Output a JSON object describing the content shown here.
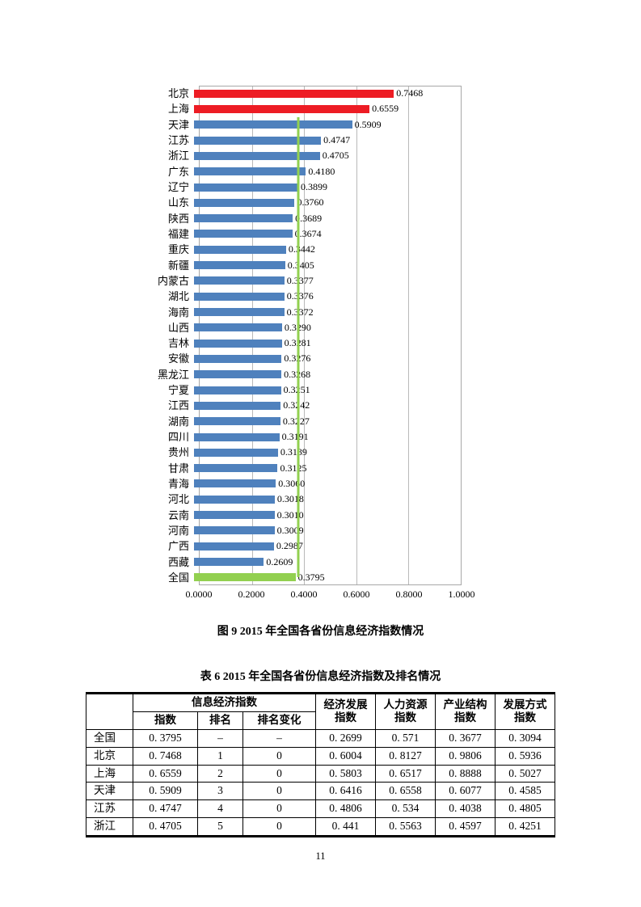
{
  "page": {
    "number": "11"
  },
  "figure": {
    "caption": "图 9  2015 年全国各省份信息经济指数情况"
  },
  "colors": {
    "red": "#ed1c24",
    "blue": "#4f81bd",
    "green": "#92d050",
    "grid": "#b9b9b9"
  },
  "chart_data": {
    "type": "bar",
    "orientation": "horizontal",
    "title": "",
    "xlabel": "",
    "ylabel": "",
    "xlim": [
      0,
      1
    ],
    "grid": true,
    "x_ticks": [
      "0.0000",
      "0.2000",
      "0.4000",
      "0.6000",
      "0.8000",
      "1.0000"
    ],
    "reference_line": {
      "value": 0.3795,
      "color": "green"
    },
    "items": [
      {
        "label": "北京",
        "value": 0.7468,
        "display": "0.7468",
        "color": "red"
      },
      {
        "label": "上海",
        "value": 0.6559,
        "display": "0.6559",
        "color": "red"
      },
      {
        "label": "天津",
        "value": 0.5909,
        "display": "0.5909",
        "color": "blue"
      },
      {
        "label": "江苏",
        "value": 0.4747,
        "display": "0.4747",
        "color": "blue"
      },
      {
        "label": "浙江",
        "value": 0.4705,
        "display": "0.4705",
        "color": "blue"
      },
      {
        "label": "广东",
        "value": 0.418,
        "display": "0.4180",
        "color": "blue"
      },
      {
        "label": "辽宁",
        "value": 0.3899,
        "display": "0.3899",
        "color": "blue"
      },
      {
        "label": "山东",
        "value": 0.376,
        "display": "0.3760",
        "color": "blue"
      },
      {
        "label": "陕西",
        "value": 0.3689,
        "display": "0.3689",
        "color": "blue"
      },
      {
        "label": "福建",
        "value": 0.3674,
        "display": "0.3674",
        "color": "blue"
      },
      {
        "label": "重庆",
        "value": 0.3442,
        "display": "0.3442",
        "color": "blue"
      },
      {
        "label": "新疆",
        "value": 0.3405,
        "display": "0.3405",
        "color": "blue"
      },
      {
        "label": "内蒙古",
        "value": 0.3377,
        "display": "0.3377",
        "color": "blue"
      },
      {
        "label": "湖北",
        "value": 0.3376,
        "display": "0.3376",
        "color": "blue"
      },
      {
        "label": "海南",
        "value": 0.3372,
        "display": "0.3372",
        "color": "blue"
      },
      {
        "label": "山西",
        "value": 0.329,
        "display": "0.3290",
        "color": "blue"
      },
      {
        "label": "吉林",
        "value": 0.3281,
        "display": "0.3281",
        "color": "blue"
      },
      {
        "label": "安徽",
        "value": 0.3276,
        "display": "0.3276",
        "color": "blue"
      },
      {
        "label": "黑龙江",
        "value": 0.3268,
        "display": "0.3268",
        "color": "blue"
      },
      {
        "label": "宁夏",
        "value": 0.3251,
        "display": "0.3251",
        "color": "blue"
      },
      {
        "label": "江西",
        "value": 0.3242,
        "display": "0.3242",
        "color": "blue"
      },
      {
        "label": "湖南",
        "value": 0.3227,
        "display": "0.3227",
        "color": "blue"
      },
      {
        "label": "四川",
        "value": 0.3191,
        "display": "0.3191",
        "color": "blue"
      },
      {
        "label": "贵州",
        "value": 0.3139,
        "display": "0.3139",
        "color": "blue"
      },
      {
        "label": "甘肃",
        "value": 0.3125,
        "display": "0.3125",
        "color": "blue"
      },
      {
        "label": "青海",
        "value": 0.306,
        "display": "0.3060",
        "color": "blue"
      },
      {
        "label": "河北",
        "value": 0.3018,
        "display": "0.3018",
        "color": "blue"
      },
      {
        "label": "云南",
        "value": 0.301,
        "display": "0.3010",
        "color": "blue"
      },
      {
        "label": "河南",
        "value": 0.3009,
        "display": "0.3009",
        "color": "blue"
      },
      {
        "label": "广西",
        "value": 0.2987,
        "display": "0.2987",
        "color": "blue"
      },
      {
        "label": "西藏",
        "value": 0.2609,
        "display": "0.2609",
        "color": "blue"
      },
      {
        "label": "全国",
        "value": 0.3795,
        "display": "0.3795",
        "color": "green"
      }
    ]
  },
  "table": {
    "caption": "表 6  2015 年全国各省份信息经济指数及排名情况",
    "header": {
      "group": "信息经济指数",
      "sub": [
        "指数",
        "排名",
        "排名变化"
      ],
      "econ": {
        "line1": "经济发展",
        "line2": "指数"
      },
      "hr": {
        "line1": "人力资源",
        "line2": "指数"
      },
      "industry": {
        "line1": "产业结构",
        "line2": "指数"
      },
      "dev": {
        "line1": "发展方式",
        "line2": "指数"
      }
    },
    "rows": [
      {
        "name": "全国",
        "cells": [
          "0. 3795",
          "–",
          "–",
          "0. 2699",
          "0. 571",
          "0. 3677",
          "0. 3094"
        ]
      },
      {
        "name": "北京",
        "cells": [
          "0. 7468",
          "1",
          "0",
          "0. 6004",
          "0. 8127",
          "0. 9806",
          "0. 5936"
        ]
      },
      {
        "name": "上海",
        "cells": [
          "0. 6559",
          "2",
          "0",
          "0. 5803",
          "0. 6517",
          "0. 8888",
          "0. 5027"
        ]
      },
      {
        "name": "天津",
        "cells": [
          "0. 5909",
          "3",
          "0",
          "0. 6416",
          "0. 6558",
          "0. 6077",
          "0. 4585"
        ]
      },
      {
        "name": "江苏",
        "cells": [
          "0. 4747",
          "4",
          "0",
          "0. 4806",
          "0. 534",
          "0. 4038",
          "0. 4805"
        ]
      },
      {
        "name": "浙江",
        "cells": [
          "0. 4705",
          "5",
          "0",
          "0. 441",
          "0. 5563",
          "0. 4597",
          "0. 4251"
        ]
      }
    ]
  }
}
